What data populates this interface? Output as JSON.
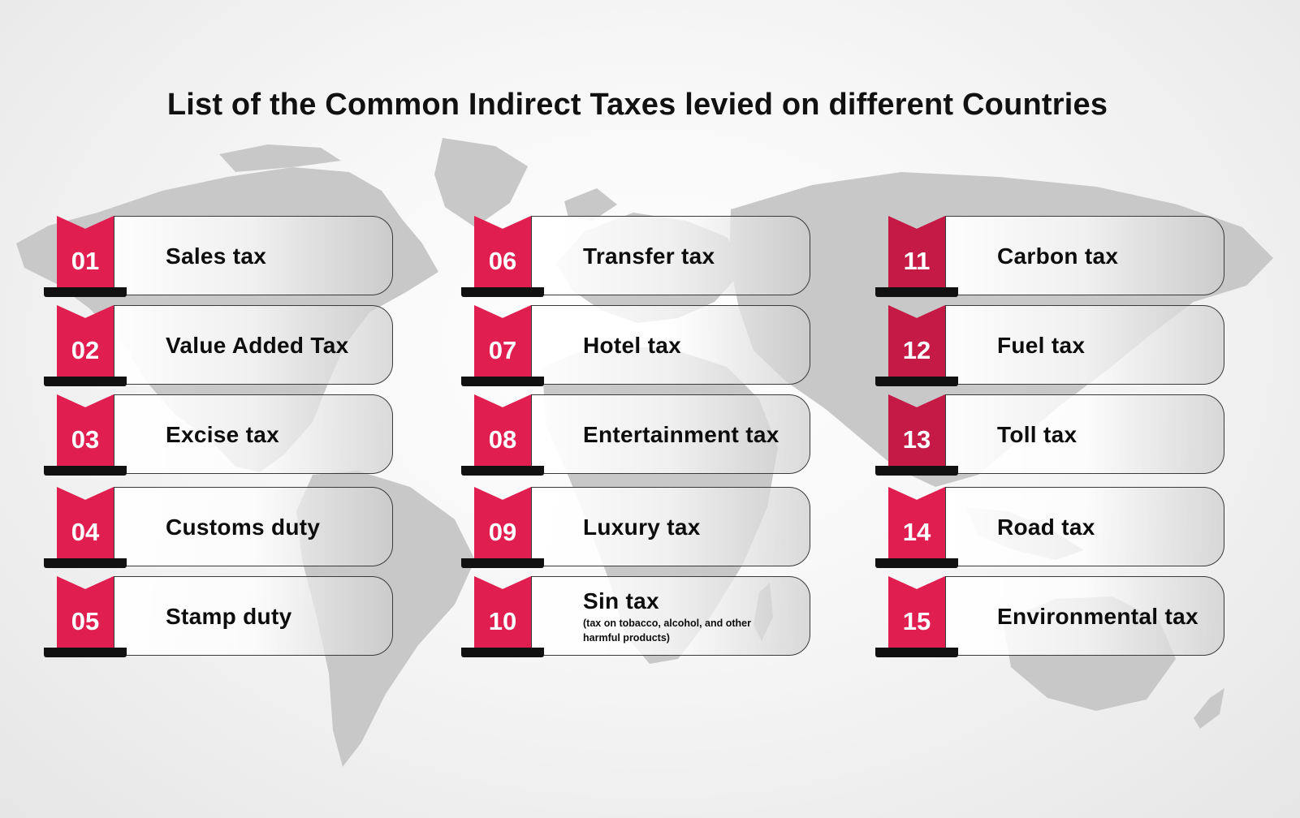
{
  "title": "List of the Common Indirect Taxes levied on different Countries",
  "colors": {
    "ribbon": "#e01e4f",
    "ribbon_dark": "#c51a46",
    "base": "#111111",
    "map": "#c7c7c7"
  },
  "background_icon": "world-map",
  "columns": [
    [
      {
        "num": "01",
        "label": "Sales tax"
      },
      {
        "num": "02",
        "label": "Value Added Tax"
      },
      {
        "num": "03",
        "label": "Excise tax"
      },
      {
        "num": "04",
        "label": "Customs duty"
      },
      {
        "num": "05",
        "label": "Stamp duty"
      }
    ],
    [
      {
        "num": "06",
        "label": "Transfer tax"
      },
      {
        "num": "07",
        "label": "Hotel tax"
      },
      {
        "num": "08",
        "label": "Entertainment tax"
      },
      {
        "num": "09",
        "label": "Luxury tax"
      },
      {
        "num": "10",
        "label": "Sin tax",
        "sub": "(tax on tobacco, alcohol, and other harmful products)"
      }
    ],
    [
      {
        "num": "11",
        "label": "Carbon tax"
      },
      {
        "num": "12",
        "label": "Fuel tax"
      },
      {
        "num": "13",
        "label": "Toll tax"
      },
      {
        "num": "14",
        "label": "Road tax"
      },
      {
        "num": "15",
        "label": "Environmental tax"
      }
    ]
  ]
}
